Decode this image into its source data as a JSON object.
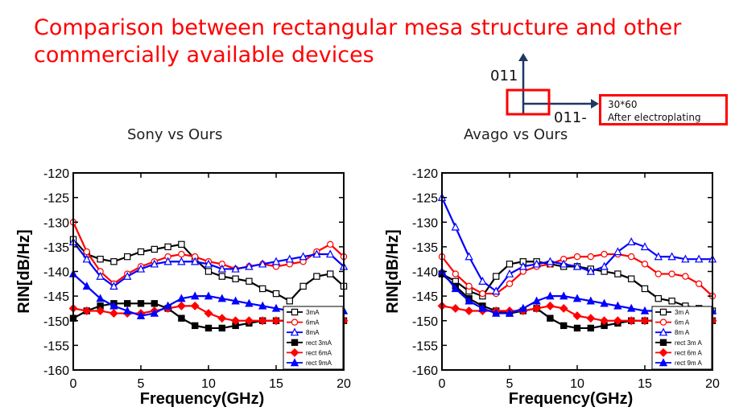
{
  "page": {
    "title_line1": "Comparison between rectangular mesa structure and other",
    "title_line2": "commercially available devices",
    "subtitle_left": "Sony vs Ours",
    "subtitle_right": "Avago vs Ours",
    "orientation_up": "011",
    "orientation_right": "011-",
    "note_line1": "30*60",
    "note_line2": "After electroplating",
    "colors": {
      "title": "#ff0000",
      "arrow": "#1f3864",
      "box": "#ff0000"
    }
  },
  "chart_data": [
    {
      "type": "line",
      "title": "",
      "xlabel": "Frequency(GHz)",
      "ylabel": "RIN[dB/Hz]",
      "xlim": [
        0,
        20
      ],
      "ylim": [
        -160,
        -120
      ],
      "xticks": [
        "0",
        "5",
        "10",
        "15",
        "20"
      ],
      "yticks": [
        "-120",
        "-125",
        "-130",
        "-135",
        "-140",
        "-145",
        "-150",
        "-155",
        "-160"
      ],
      "grid": false,
      "legend_position": "bottom-right",
      "x": [
        0,
        1,
        2,
        3,
        4,
        5,
        6,
        7,
        8,
        9,
        10,
        11,
        12,
        13,
        14,
        15,
        16,
        17,
        18,
        19,
        20
      ],
      "series": [
        {
          "name": "3mA",
          "color": "#000000",
          "marker": "square-open",
          "values": [
            -133.5,
            -136.5,
            -137.5,
            -138,
            -137,
            -136,
            -135.5,
            -135,
            -134.5,
            -137.5,
            -140,
            -141,
            -141.5,
            -142,
            -143.5,
            -144.5,
            -146,
            -143,
            -141,
            -140.5,
            -143
          ]
        },
        {
          "name": "6mA",
          "color": "#ff0000",
          "marker": "circle-open",
          "values": [
            -130,
            -136,
            -140,
            -142.5,
            -140.5,
            -139,
            -138,
            -137,
            -136.5,
            -137,
            -138,
            -138.5,
            -139.5,
            -139,
            -138.5,
            -139,
            -138.5,
            -138,
            -136,
            -134.5,
            -137
          ]
        },
        {
          "name": "8mA",
          "color": "#0000ff",
          "marker": "triangle-open",
          "values": [
            -134,
            -137.5,
            -141,
            -143,
            -141,
            -139.5,
            -138.5,
            -138,
            -138,
            -138,
            -138.5,
            -139.5,
            -139.5,
            -139,
            -138.5,
            -138,
            -137.5,
            -137,
            -136.5,
            -136.5,
            -139
          ]
        },
        {
          "name": "rect 3mA",
          "color": "#000000",
          "marker": "square-filled",
          "values": [
            -149.5,
            -148,
            -147,
            -146.5,
            -146.5,
            -146.5,
            -146.5,
            -147.5,
            -149.5,
            -151,
            -151.5,
            -151.5,
            -151,
            -150.5,
            -150,
            -150,
            -150,
            -150,
            -150,
            -150,
            -150
          ]
        },
        {
          "name": "rect 6mA",
          "color": "#ff0000",
          "marker": "diamond-filled",
          "values": [
            -147.5,
            -148,
            -148,
            -148.5,
            -148.5,
            -148.5,
            -148,
            -147.5,
            -147,
            -147,
            -148.5,
            -149.5,
            -150,
            -150,
            -150,
            -150,
            -150,
            -150,
            -150,
            -150,
            -150
          ]
        },
        {
          "name": "rect 9mA",
          "color": "#0000ff",
          "marker": "triangle-filled",
          "values": [
            -140.5,
            -143,
            -145.5,
            -147,
            -148,
            -149,
            -148.5,
            -147,
            -145.5,
            -145,
            -145,
            -145.5,
            -146,
            -146.5,
            -147,
            -147.5,
            -148,
            -148,
            -148,
            -148,
            -148
          ]
        }
      ]
    },
    {
      "type": "line",
      "title": "",
      "xlabel": "Frequency(GHz)",
      "ylabel": "RIN[dB/Hz]",
      "xlim": [
        0,
        20
      ],
      "ylim": [
        -160,
        -120
      ],
      "xticks": [
        "0",
        "5",
        "10",
        "15",
        "20"
      ],
      "yticks": [
        "-120",
        "-125",
        "-130",
        "-135",
        "-140",
        "-145",
        "-150",
        "-155",
        "-160"
      ],
      "grid": false,
      "legend_position": "bottom-right",
      "x": [
        0,
        1,
        2,
        3,
        4,
        5,
        6,
        7,
        8,
        9,
        10,
        11,
        12,
        13,
        14,
        15,
        16,
        17,
        18,
        19,
        20
      ],
      "series": [
        {
          "name": "3m A",
          "color": "#000000",
          "marker": "square-open",
          "values": [
            -140.5,
            -142,
            -144,
            -145,
            -141,
            -138.5,
            -138,
            -138,
            -138.5,
            -139,
            -139,
            -139.5,
            -140,
            -140.5,
            -141.5,
            -143.5,
            -145.5,
            -146,
            -147,
            -147.5,
            -148
          ]
        },
        {
          "name": "6m A",
          "color": "#ff0000",
          "marker": "circle-open",
          "values": [
            -137,
            -140.5,
            -143,
            -144.5,
            -144.5,
            -142.5,
            -140,
            -139,
            -138.5,
            -137.5,
            -137,
            -137,
            -136.5,
            -136.5,
            -137,
            -138.5,
            -140.5,
            -140.5,
            -141,
            -142.5,
            -145
          ]
        },
        {
          "name": "8m A",
          "color": "#0000ff",
          "marker": "triangle-open",
          "values": [
            -125,
            -131,
            -137,
            -142,
            -144,
            -140.5,
            -139,
            -138.5,
            -138,
            -138.5,
            -139,
            -140,
            -139,
            -136,
            -134,
            -135,
            -137,
            -137,
            -137.5,
            -137.5,
            -137.5
          ]
        },
        {
          "name": "rect 3m A",
          "color": "#000000",
          "marker": "square-filled",
          "values": [
            -140.5,
            -143,
            -145.5,
            -147,
            -148,
            -148.5,
            -148,
            -147.5,
            -149.5,
            -151,
            -151.5,
            -151.5,
            -151,
            -150.5,
            -150,
            -150,
            -150,
            -150,
            -150,
            -150,
            -150
          ]
        },
        {
          "name": "rect 6m A",
          "color": "#ff0000",
          "marker": "diamond-filled",
          "values": [
            -147,
            -147.5,
            -148,
            -148,
            -148,
            -148,
            -148,
            -147.5,
            -147,
            -147.5,
            -149,
            -149.5,
            -150,
            -150,
            -150,
            -150,
            -150,
            -150,
            -150,
            -150,
            -150
          ]
        },
        {
          "name": "rect 9m A",
          "color": "#0000ff",
          "marker": "triangle-filled",
          "values": [
            -140,
            -143.5,
            -146,
            -147.5,
            -148.5,
            -148.5,
            -147.5,
            -146,
            -145,
            -145,
            -145.5,
            -146,
            -146.5,
            -147,
            -147.5,
            -148,
            -148,
            -148,
            -148,
            -148,
            -148
          ]
        }
      ]
    }
  ]
}
